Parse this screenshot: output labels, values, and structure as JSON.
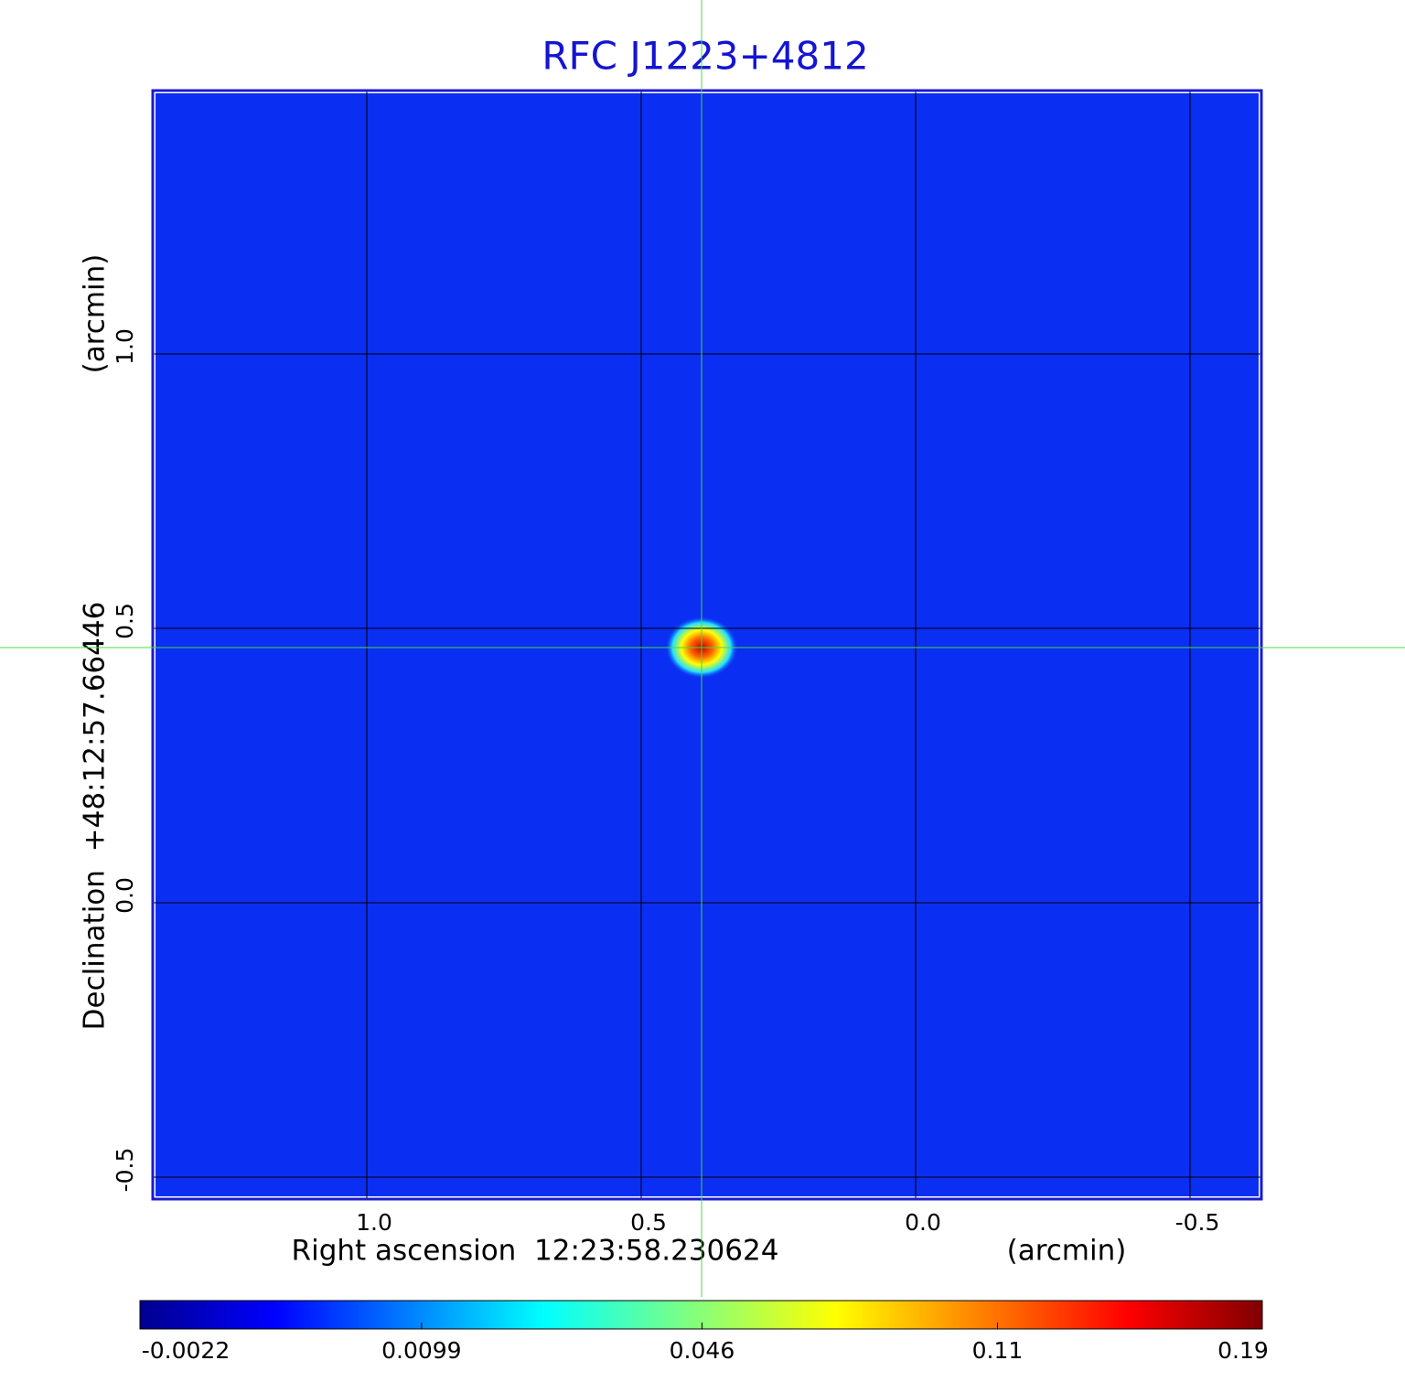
{
  "chart_data": {
    "type": "image",
    "title": "RFC J1223+4812",
    "title_color": "#1414d2",
    "x_label": "Right ascension  12:23:58.230624",
    "x_unit": "(arcmin)",
    "y_label": "Declination  +48:12:57.66446",
    "y_unit": "(arcmin)",
    "xlim": [
      1.39,
      -0.63
    ],
    "ylim": [
      -0.54,
      1.48
    ],
    "xticks": [
      {
        "value": 1,
        "label": "1.0"
      },
      0.5,
      {
        "value": 0,
        "label": "0.0"
      },
      -0.5
    ],
    "yticks": [
      -0.5,
      {
        "value": 0,
        "label": "0.0"
      },
      0.5,
      {
        "value": 1,
        "label": "1.0"
      }
    ],
    "grid": true,
    "image_color": "#0a2ef2",
    "frame_color": "#1a1ad0",
    "crosshair": {
      "x": 0.39,
      "y": 0.465,
      "color": "#44dd44"
    },
    "colorbar": {
      "lim": [
        -0.0022,
        0.19
      ],
      "ticks": [
        -0.0022,
        0.0099,
        0.046,
        0.11,
        0.19
      ],
      "scale": "sqrt"
    }
  }
}
